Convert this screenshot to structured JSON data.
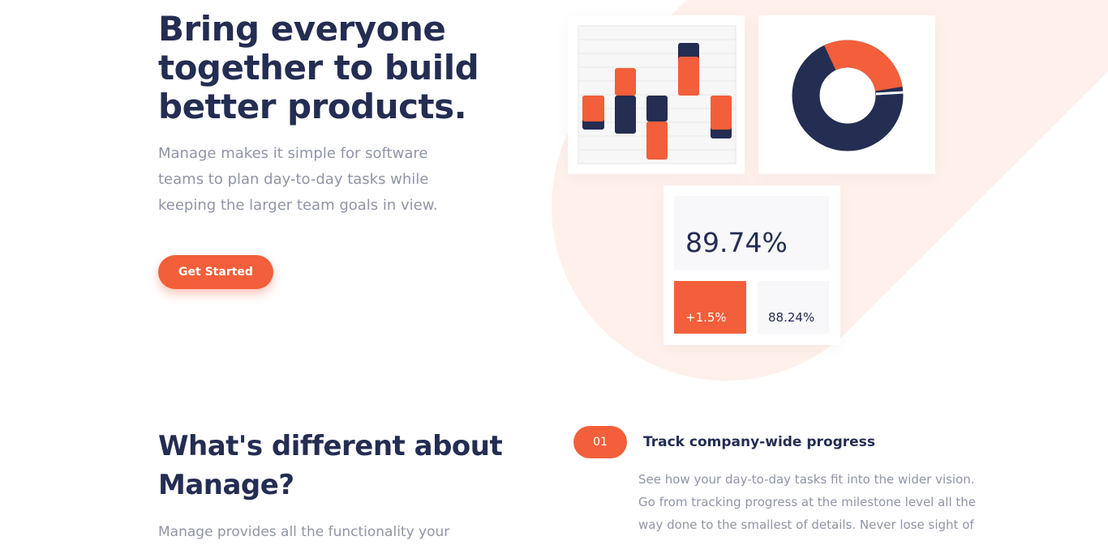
{
  "hero": {
    "title_lines": [
      "Bring everyone",
      "together to build",
      "better products."
    ],
    "description_lines": [
      "Manage makes it simple for software",
      "teams to plan day-to-day tasks while",
      "keeping the larger team goals in view."
    ],
    "button": "Get Started",
    "stats": {
      "main": "89.74%",
      "change": "+1.5%",
      "secondary": "88.24%"
    }
  },
  "features": {
    "title_lines": [
      "What's different about",
      "Manage?"
    ],
    "description_lines": [
      "Manage provides all the functionality your"
    ],
    "items": [
      {
        "number": "01",
        "title": "Track company-wide progress",
        "description_lines": [
          "See how your day-to-day tasks fit into the wider vision.",
          "Go from tracking progress at the milestone level all the",
          "way done to the smallest of details. Never lose sight of"
        ]
      }
    ]
  }
}
